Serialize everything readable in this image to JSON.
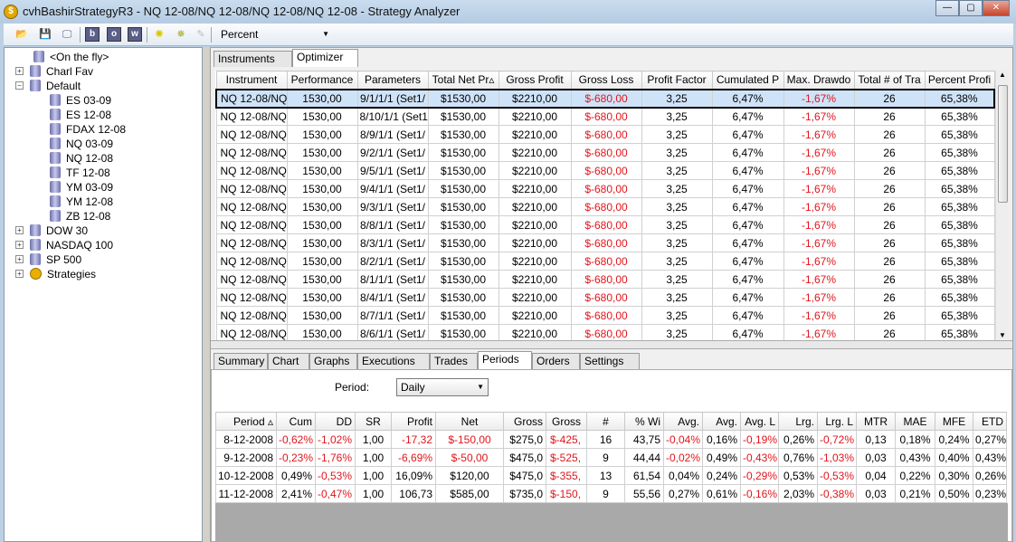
{
  "window": {
    "title": "cvhBashirStrategyR3 - NQ 12-08/NQ 12-08/NQ 12-08/NQ 12-08 - Strategy Analyzer",
    "icon": "coin-icon",
    "controls": [
      "minimize",
      "maximize",
      "close"
    ]
  },
  "toolbar": {
    "icons": [
      "open-folder-icon",
      "save-icon",
      "monitor-icon",
      "b-icon",
      "o-icon",
      "w-icon",
      "sparkle-icon",
      "sparkle-arrow-icon",
      "pin-icon"
    ],
    "b": "b",
    "o": "o",
    "w": "w",
    "display_mode": "Percent"
  },
  "tree": [
    {
      "label": "<On the fly>",
      "level": 0,
      "expander": "",
      "icon": "db"
    },
    {
      "label": "Charl Fav",
      "level": 0,
      "expander": "+",
      "icon": "db"
    },
    {
      "label": "Default",
      "level": 0,
      "expander": "−",
      "icon": "db"
    },
    {
      "label": "ES 03-09",
      "level": 1,
      "expander": "",
      "icon": "db"
    },
    {
      "label": "ES 12-08",
      "level": 1,
      "expander": "",
      "icon": "db"
    },
    {
      "label": "FDAX 12-08",
      "level": 1,
      "expander": "",
      "icon": "db"
    },
    {
      "label": "NQ 03-09",
      "level": 1,
      "expander": "",
      "icon": "db"
    },
    {
      "label": "NQ 12-08",
      "level": 1,
      "expander": "",
      "icon": "db"
    },
    {
      "label": "TF 12-08",
      "level": 1,
      "expander": "",
      "icon": "db"
    },
    {
      "label": "YM 03-09",
      "level": 1,
      "expander": "",
      "icon": "db"
    },
    {
      "label": "YM 12-08",
      "level": 1,
      "expander": "",
      "icon": "db"
    },
    {
      "label": "ZB 12-08",
      "level": 1,
      "expander": "",
      "icon": "db"
    },
    {
      "label": "DOW 30",
      "level": 0,
      "expander": "+",
      "icon": "db"
    },
    {
      "label": "NASDAQ 100",
      "level": 0,
      "expander": "+",
      "icon": "db"
    },
    {
      "label": "SP 500",
      "level": 0,
      "expander": "+",
      "icon": "db"
    },
    {
      "label": "Strategies",
      "level": 0,
      "expander": "+",
      "icon": "coin"
    }
  ],
  "top_tabs": [
    {
      "label": "Instruments",
      "active": false
    },
    {
      "label": "Optimizer",
      "active": true
    }
  ],
  "optimizer": {
    "columns": [
      "Instrument",
      "Performance",
      "Parameters",
      "Total Net Pr▵",
      "Gross Profit",
      "Gross Loss",
      "Profit Factor",
      "Cumulated P",
      "Max. Drawdo",
      "Total # of Tra",
      "Percent Profi"
    ],
    "rows": [
      [
        "NQ 12-08/NQ",
        "1530,00",
        "9/1/1/1 (Set1/",
        "$1530,00",
        "$2210,00",
        "$-680,00",
        "3,25",
        "6,47%",
        "-1,67%",
        "26",
        "65,38%"
      ],
      [
        "NQ 12-08/NQ",
        "1530,00",
        "8/10/1/1 (Set1/",
        "$1530,00",
        "$2210,00",
        "$-680,00",
        "3,25",
        "6,47%",
        "-1,67%",
        "26",
        "65,38%"
      ],
      [
        "NQ 12-08/NQ",
        "1530,00",
        "8/9/1/1 (Set1/",
        "$1530,00",
        "$2210,00",
        "$-680,00",
        "3,25",
        "6,47%",
        "-1,67%",
        "26",
        "65,38%"
      ],
      [
        "NQ 12-08/NQ",
        "1530,00",
        "9/2/1/1 (Set1/",
        "$1530,00",
        "$2210,00",
        "$-680,00",
        "3,25",
        "6,47%",
        "-1,67%",
        "26",
        "65,38%"
      ],
      [
        "NQ 12-08/NQ",
        "1530,00",
        "9/5/1/1 (Set1/",
        "$1530,00",
        "$2210,00",
        "$-680,00",
        "3,25",
        "6,47%",
        "-1,67%",
        "26",
        "65,38%"
      ],
      [
        "NQ 12-08/NQ",
        "1530,00",
        "9/4/1/1 (Set1/",
        "$1530,00",
        "$2210,00",
        "$-680,00",
        "3,25",
        "6,47%",
        "-1,67%",
        "26",
        "65,38%"
      ],
      [
        "NQ 12-08/NQ",
        "1530,00",
        "9/3/1/1 (Set1/",
        "$1530,00",
        "$2210,00",
        "$-680,00",
        "3,25",
        "6,47%",
        "-1,67%",
        "26",
        "65,38%"
      ],
      [
        "NQ 12-08/NQ",
        "1530,00",
        "8/8/1/1 (Set1/",
        "$1530,00",
        "$2210,00",
        "$-680,00",
        "3,25",
        "6,47%",
        "-1,67%",
        "26",
        "65,38%"
      ],
      [
        "NQ 12-08/NQ",
        "1530,00",
        "8/3/1/1 (Set1/",
        "$1530,00",
        "$2210,00",
        "$-680,00",
        "3,25",
        "6,47%",
        "-1,67%",
        "26",
        "65,38%"
      ],
      [
        "NQ 12-08/NQ",
        "1530,00",
        "8/2/1/1 (Set1/",
        "$1530,00",
        "$2210,00",
        "$-680,00",
        "3,25",
        "6,47%",
        "-1,67%",
        "26",
        "65,38%"
      ],
      [
        "NQ 12-08/NQ",
        "1530,00",
        "8/1/1/1 (Set1/",
        "$1530,00",
        "$2210,00",
        "$-680,00",
        "3,25",
        "6,47%",
        "-1,67%",
        "26",
        "65,38%"
      ],
      [
        "NQ 12-08/NQ",
        "1530,00",
        "8/4/1/1 (Set1/",
        "$1530,00",
        "$2210,00",
        "$-680,00",
        "3,25",
        "6,47%",
        "-1,67%",
        "26",
        "65,38%"
      ],
      [
        "NQ 12-08/NQ",
        "1530,00",
        "8/7/1/1 (Set1/",
        "$1530,00",
        "$2210,00",
        "$-680,00",
        "3,25",
        "6,47%",
        "-1,67%",
        "26",
        "65,38%"
      ],
      [
        "NQ 12-08/NQ",
        "1530,00",
        "8/6/1/1 (Set1/",
        "$1530,00",
        "$2210,00",
        "$-680,00",
        "3,25",
        "6,47%",
        "-1,67%",
        "26",
        "65,38%"
      ]
    ],
    "selected_row": 0
  },
  "bottom_tabs": [
    {
      "label": "Summary",
      "active": false
    },
    {
      "label": "Chart",
      "active": false
    },
    {
      "label": "Graphs",
      "active": false
    },
    {
      "label": "Executions",
      "active": false
    },
    {
      "label": "Trades",
      "active": false
    },
    {
      "label": "Periods",
      "active": true
    },
    {
      "label": "Orders",
      "active": false
    },
    {
      "label": "Settings",
      "active": false
    }
  ],
  "periods": {
    "period_label": "Period:",
    "period_value": "Daily",
    "columns": [
      "Period ▵",
      "Cum",
      "DD",
      "SR",
      "Profit",
      "Net",
      "Gross",
      "Gross",
      "#",
      "% Wi",
      "Avg.",
      "Avg.",
      "Avg. L",
      "Lrg.",
      "Lrg. L",
      "MTR",
      "MAE",
      "MFE",
      "ETD"
    ],
    "rows": [
      [
        "8-12-2008",
        "-0,62%",
        "-1,02%",
        "1,00",
        "-17,32",
        "$-150,00",
        "$275,0",
        "$-425,",
        "16",
        "43,75",
        "-0,04%",
        "0,16%",
        "-0,19%",
        "0,26%",
        "-0,72%",
        "0,13",
        "0,18%",
        "0,24%",
        "0,27%"
      ],
      [
        "9-12-2008",
        "-0,23%",
        "-1,76%",
        "1,00",
        "-6,69%",
        "$-50,00",
        "$475,0",
        "$-525,",
        "9",
        "44,44",
        "-0,02%",
        "0,49%",
        "-0,43%",
        "0,76%",
        "-1,03%",
        "0,03",
        "0,43%",
        "0,40%",
        "0,43%"
      ],
      [
        "10-12-2008",
        "0,49%",
        "-0,53%",
        "1,00",
        "16,09%",
        "$120,00",
        "$475,0",
        "$-355,",
        "13",
        "61,54",
        "0,04%",
        "0,24%",
        "-0,29%",
        "0,53%",
        "-0,53%",
        "0,04",
        "0,22%",
        "0,30%",
        "0,26%"
      ],
      [
        "11-12-2008",
        "2,41%",
        "-0,47%",
        "1,00",
        "106,73",
        "$585,00",
        "$735,0",
        "$-150,",
        "9",
        "55,56",
        "0,27%",
        "0,61%",
        "-0,16%",
        "2,03%",
        "-0,38%",
        "0,03",
        "0,21%",
        "0,50%",
        "0,23%"
      ]
    ]
  },
  "colors": {
    "negative": "#e0161c",
    "selection": "#cfe3f8"
  }
}
